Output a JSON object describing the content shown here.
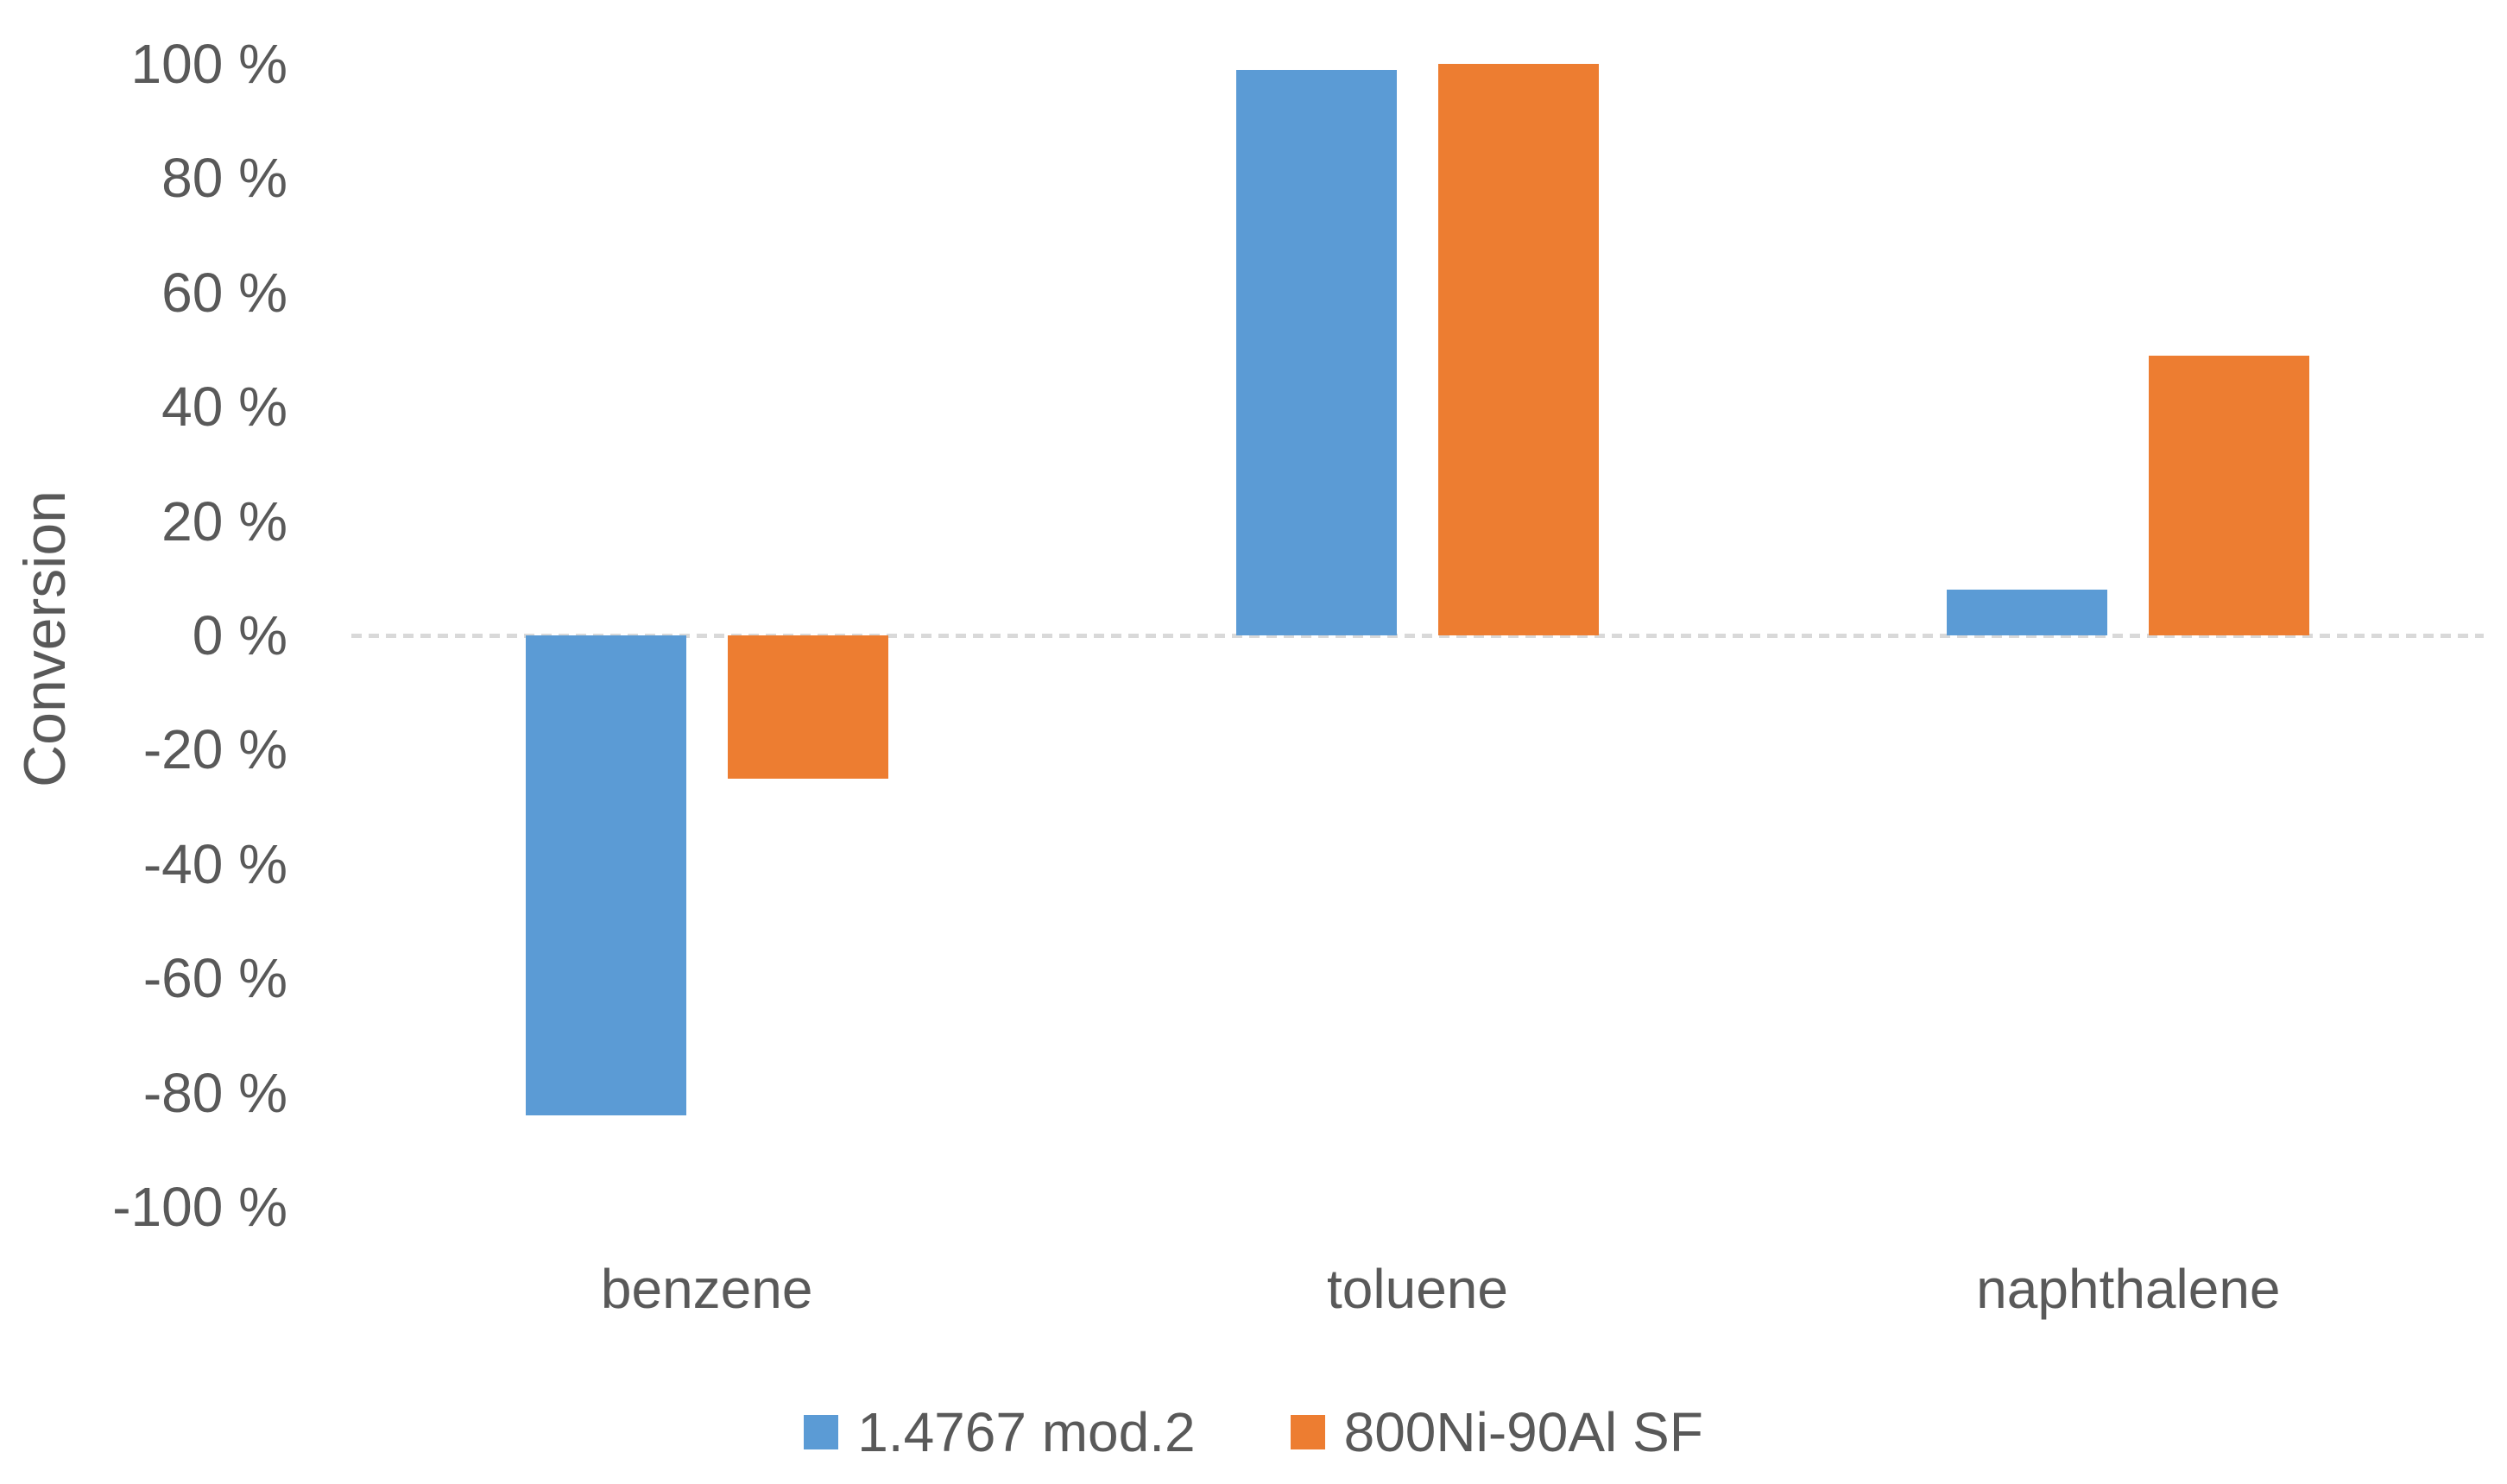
{
  "chart_data": {
    "type": "bar",
    "title": "",
    "ylabel": "Conversion",
    "xlabel": "",
    "categories": [
      "benzene",
      "toluene",
      "naphthalene"
    ],
    "series": [
      {
        "name": "1.4767 mod.2",
        "color": "#5B9BD5",
        "values": [
          -84,
          99,
          8
        ]
      },
      {
        "name": "800Ni-90Al SF",
        "color": "#ED7D31",
        "values": [
          -25,
          100,
          49
        ]
      }
    ],
    "ylim": [
      -100,
      100
    ],
    "ytick_step": 20,
    "ytick_labels": [
      "100 %",
      "80 %",
      "60 %",
      "40 %",
      "20 %",
      "0 %",
      "-20 %",
      "-40 %",
      "-60 %",
      "-80 %",
      "-100 %"
    ],
    "grid": "zero-line-only",
    "legend_position": "bottom",
    "colors": {
      "text": "#595959",
      "zero_line": "#D9D9D9",
      "background": "#FFFFFF"
    }
  }
}
